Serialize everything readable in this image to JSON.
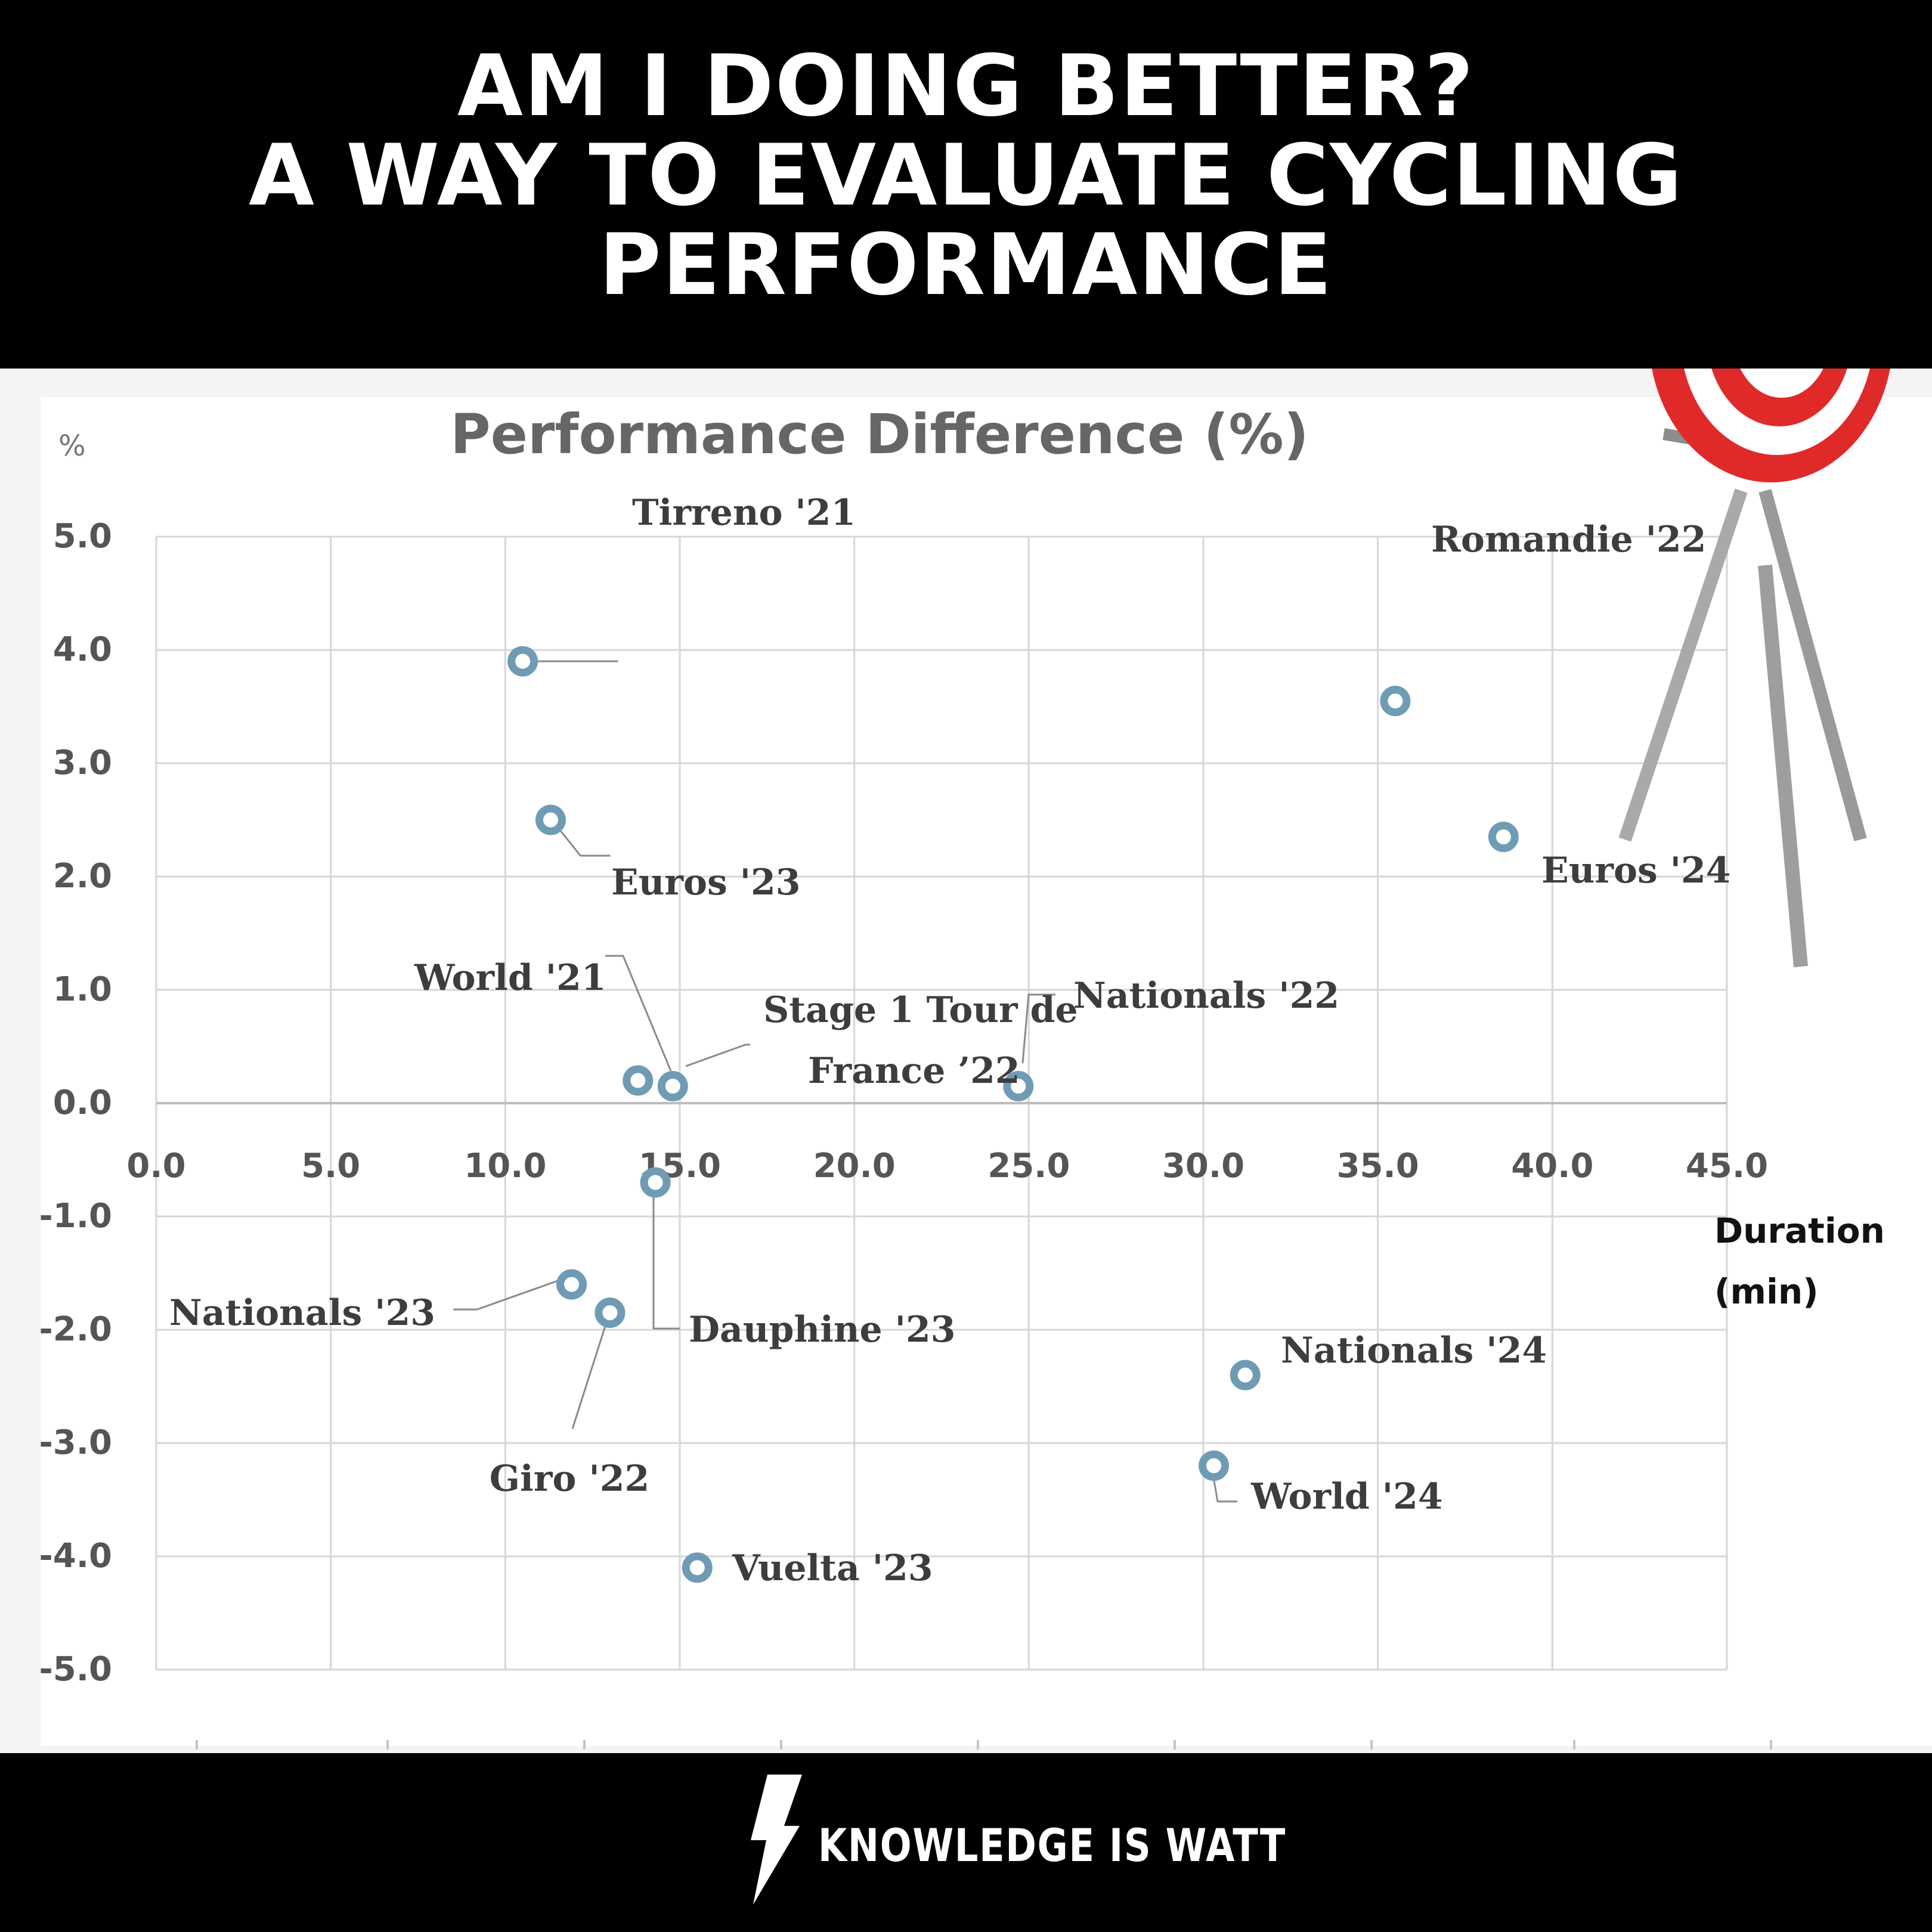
{
  "header": {
    "title_lines": [
      "AM I DOING BETTER?",
      "A WAY TO EVALUATE CYCLING",
      "PERFORMANCE"
    ]
  },
  "icons": {
    "target": "target-with-arrow-icon",
    "brand": "lightning-bolt-icon"
  },
  "colors": {
    "marker": "#6f9cb4",
    "grid": "#d6d6d6",
    "background_bands": "#000000",
    "panel": "#f4f4f4"
  },
  "chart_data": {
    "type": "scatter",
    "title": "Performance Difference (%)",
    "ylabel": "%",
    "xlabel": "Duration (min)",
    "xlim": [
      0,
      45
    ],
    "ylim": [
      -5,
      5
    ],
    "xticks": [
      "0.0",
      "5.0",
      "10.0",
      "15.0",
      "20.0",
      "25.0",
      "30.0",
      "35.0",
      "40.0",
      "45.0"
    ],
    "yticks": [
      "5.0",
      "4.0",
      "3.0",
      "2.0",
      "1.0",
      "0.0",
      "-1.0",
      "-2.0",
      "-3.0",
      "-4.0",
      "-5.0"
    ],
    "grid": true,
    "points": [
      {
        "label": "Tirreno '21",
        "x": 10.5,
        "y": 3.9
      },
      {
        "label": "Romandie '22",
        "x": 35.5,
        "y": 3.55
      },
      {
        "label": "Euros '23",
        "x": 11.3,
        "y": 2.5
      },
      {
        "label": "Euros '24",
        "x": 38.6,
        "y": 2.35
      },
      {
        "label": "World '21",
        "x": 13.8,
        "y": 0.2
      },
      {
        "label": "Stage 1 Tour de France '22",
        "x": 14.8,
        "y": 0.15
      },
      {
        "label": "Nationals '22",
        "x": 24.7,
        "y": 0.15
      },
      {
        "label": "Dauphine '23",
        "x": 14.3,
        "y": -0.7
      },
      {
        "label": "Nationals '23",
        "x": 11.9,
        "y": -1.6
      },
      {
        "label": "Giro '22",
        "x": 13.0,
        "y": -1.85
      },
      {
        "label": "Nationals '24",
        "x": 31.2,
        "y": -2.4
      },
      {
        "label": "World '24",
        "x": 30.3,
        "y": -3.2
      },
      {
        "label": "Vuelta '23",
        "x": 15.5,
        "y": -4.1
      }
    ]
  },
  "footer": {
    "brand": "KNOWLEDGE IS WATT"
  }
}
